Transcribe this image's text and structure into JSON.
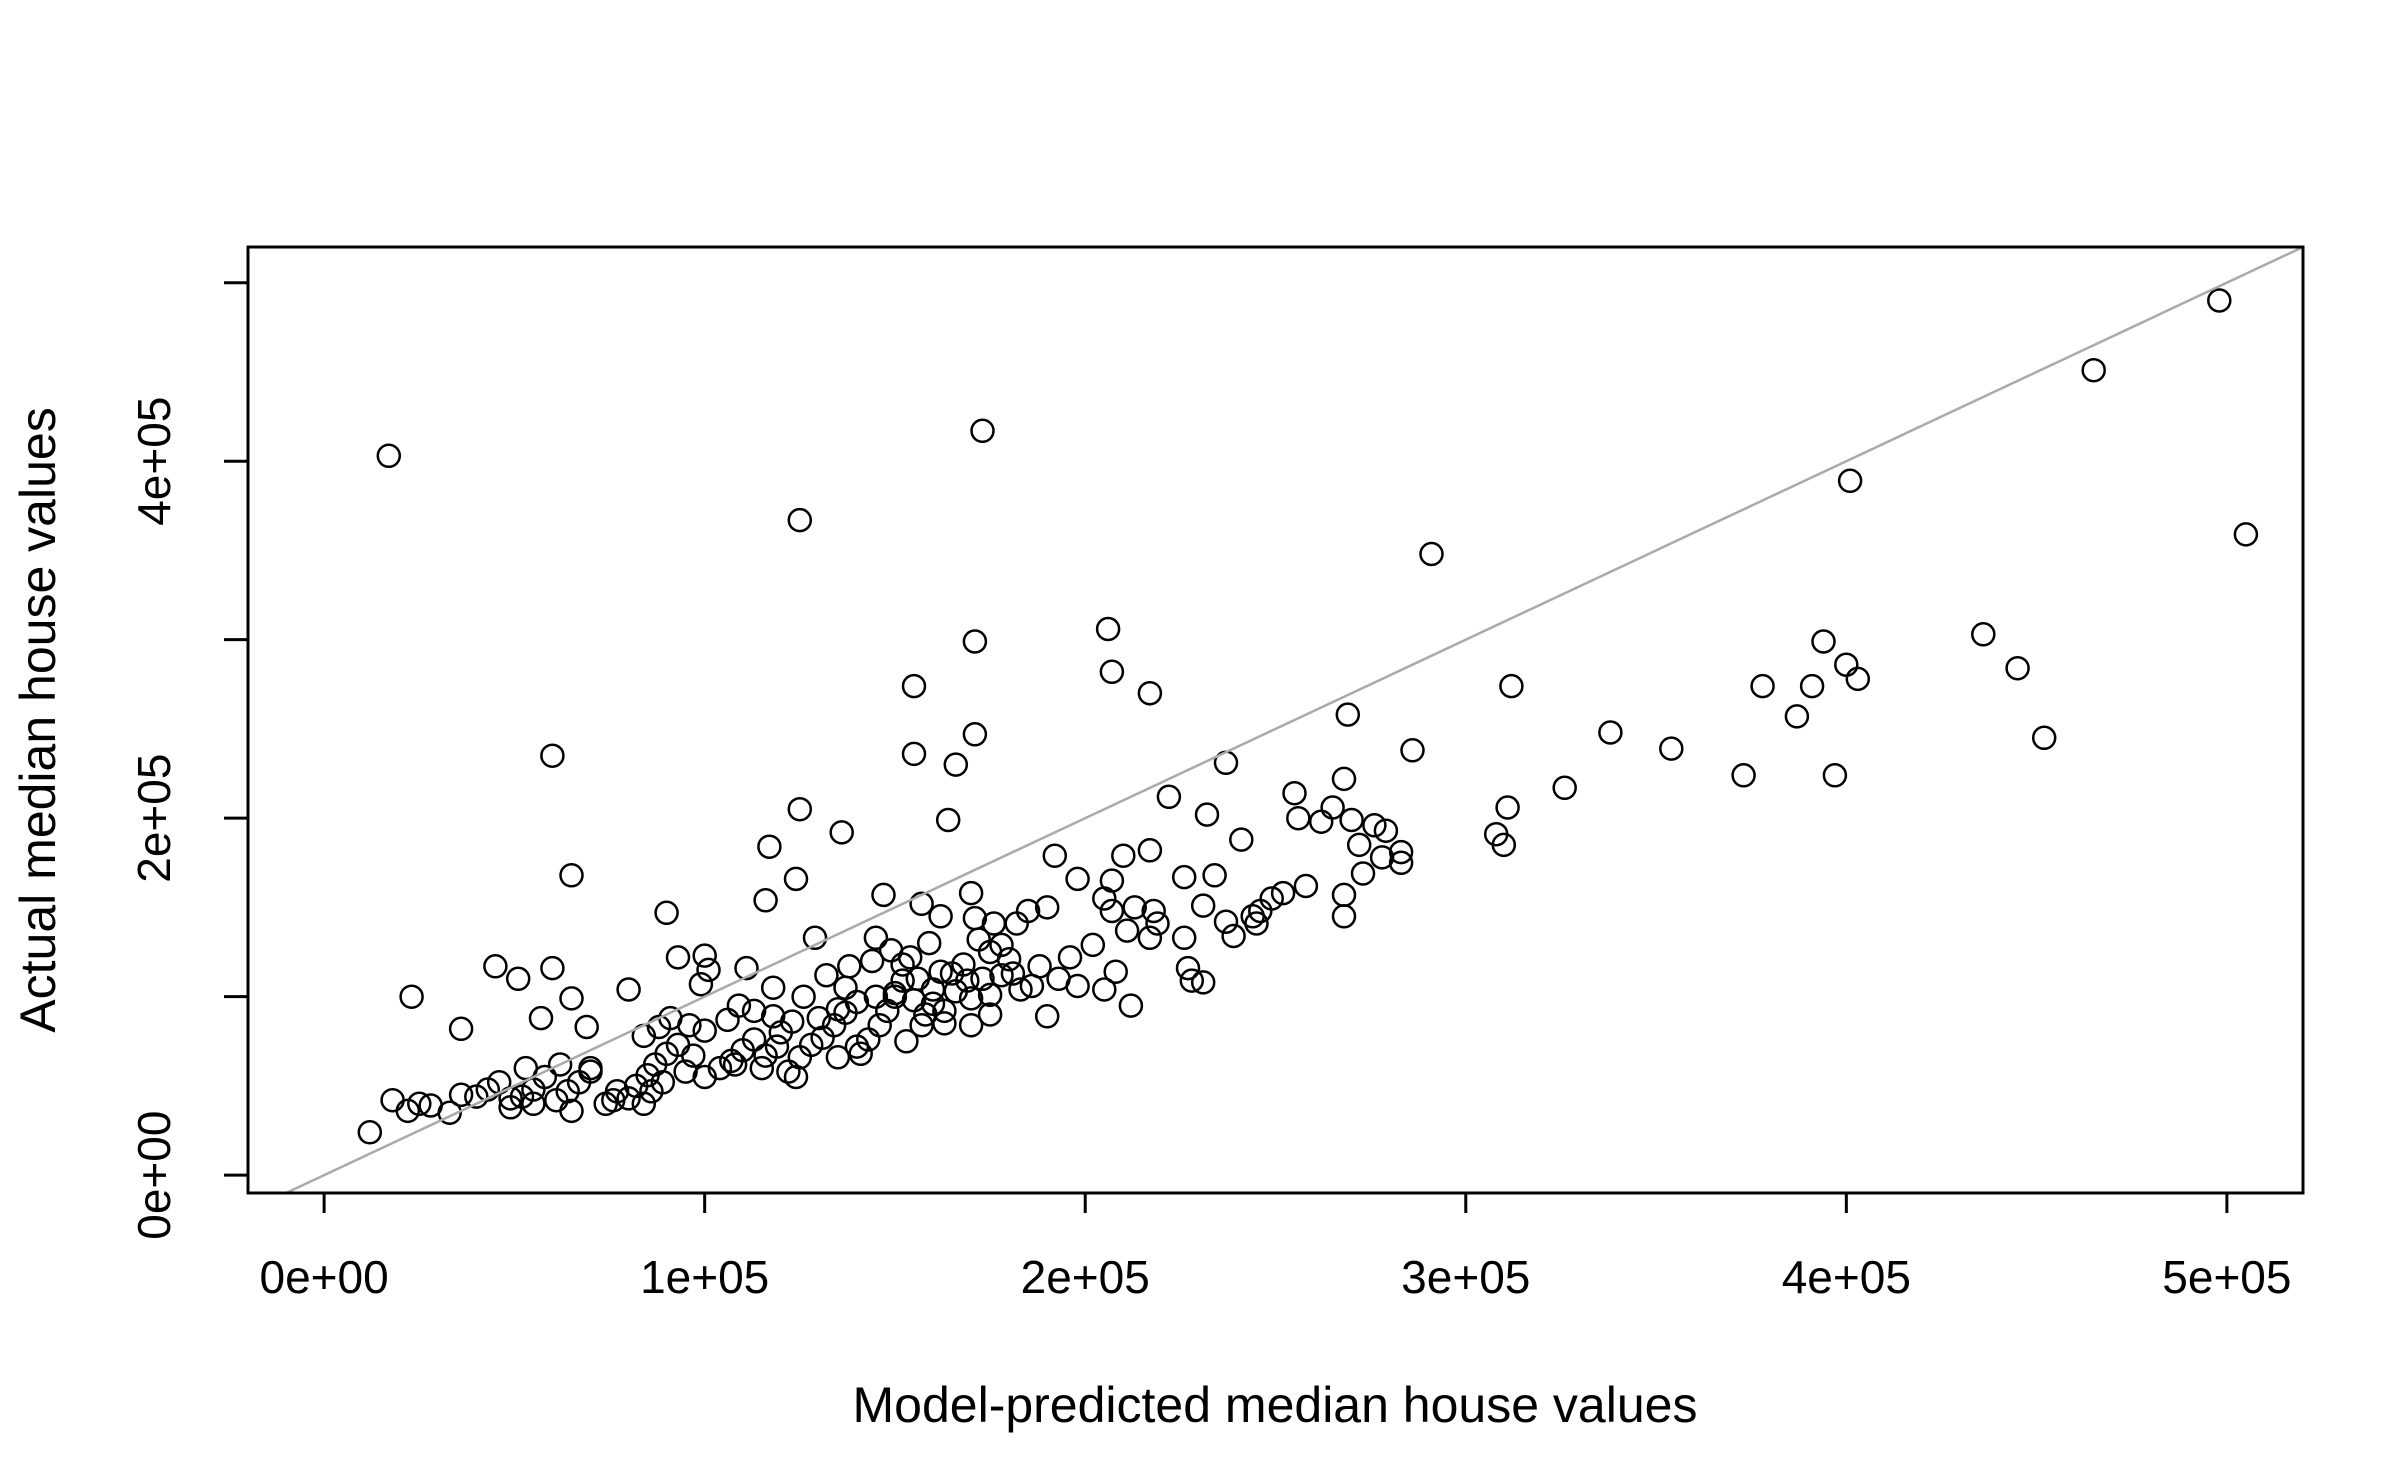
{
  "chart_data": {
    "type": "scatter",
    "title": "",
    "xlabel": "Model-predicted median house values",
    "ylabel": "Actual median house values",
    "xlim": [
      -20000,
      520000
    ],
    "ylim": [
      -10000,
      520000
    ],
    "x_ticks": [
      0,
      100000,
      200000,
      300000,
      400000,
      500000
    ],
    "x_tick_labels": [
      "0e+00",
      "1e+05",
      "2e+05",
      "3e+05",
      "4e+05",
      "5e+05"
    ],
    "y_ticks": [
      0,
      100000,
      200000,
      300000,
      400000,
      500000
    ],
    "y_tick_labels": [
      "0e+00",
      "",
      "2e+05",
      "",
      "4e+05",
      ""
    ],
    "grid": false,
    "legend": "none",
    "reference_line": {
      "slope": 1,
      "intercept": 0,
      "color": "#AAAAAA"
    },
    "marker_color": "#000000",
    "points": [
      [
        17000,
        403000
      ],
      [
        173000,
        417000
      ],
      [
        125000,
        367000
      ],
      [
        291000,
        348000
      ],
      [
        498000,
        490000
      ],
      [
        465000,
        451000
      ],
      [
        401000,
        389000
      ],
      [
        505000,
        359000
      ],
      [
        60000,
        235000
      ],
      [
        65000,
        168000
      ],
      [
        206000,
        306000
      ],
      [
        207000,
        282000
      ],
      [
        171000,
        299000
      ],
      [
        217000,
        270000
      ],
      [
        155000,
        274000
      ],
      [
        155000,
        236000
      ],
      [
        166000,
        230000
      ],
      [
        171000,
        247000
      ],
      [
        269000,
        258000
      ],
      [
        237000,
        231000
      ],
      [
        164000,
        199000
      ],
      [
        125000,
        205000
      ],
      [
        136000,
        192000
      ],
      [
        117000,
        184000
      ],
      [
        124000,
        166000
      ],
      [
        116000,
        154000
      ],
      [
        90000,
        147000
      ],
      [
        312000,
        274000
      ],
      [
        338000,
        248000
      ],
      [
        354000,
        239000
      ],
      [
        373000,
        224000
      ],
      [
        378000,
        274000
      ],
      [
        387000,
        257000
      ],
      [
        391000,
        274000
      ],
      [
        394000,
        299000
      ],
      [
        397000,
        224000
      ],
      [
        400000,
        286000
      ],
      [
        403000,
        278000
      ],
      [
        436000,
        303000
      ],
      [
        445000,
        284000
      ],
      [
        452000,
        245000
      ],
      [
        311000,
        206000
      ],
      [
        326000,
        217000
      ],
      [
        308000,
        191000
      ],
      [
        310000,
        185000
      ],
      [
        286000,
        238000
      ],
      [
        268000,
        222000
      ],
      [
        255000,
        214000
      ],
      [
        256000,
        200000
      ],
      [
        262000,
        198000
      ],
      [
        265000,
        206000
      ],
      [
        270000,
        199000
      ],
      [
        272000,
        185000
      ],
      [
        276000,
        196000
      ],
      [
        279000,
        193000
      ],
      [
        283000,
        181000
      ],
      [
        283000,
        175000
      ],
      [
        278000,
        178000
      ],
      [
        273000,
        169000
      ],
      [
        268000,
        157000
      ],
      [
        268000,
        145000
      ],
      [
        252000,
        158000
      ],
      [
        246000,
        148000
      ],
      [
        245000,
        141000
      ],
      [
        239000,
        134000
      ],
      [
        237000,
        142000
      ],
      [
        231000,
        151000
      ],
      [
        222000,
        212000
      ],
      [
        232000,
        202000
      ],
      [
        241000,
        188000
      ],
      [
        217000,
        182000
      ],
      [
        210000,
        179000
      ],
      [
        207000,
        165000
      ],
      [
        205000,
        155000
      ],
      [
        207000,
        148000
      ],
      [
        213000,
        150000
      ],
      [
        219000,
        141000
      ],
      [
        217000,
        133000
      ],
      [
        211000,
        137000
      ],
      [
        202000,
        129000
      ],
      [
        198000,
        166000
      ],
      [
        192000,
        179000
      ],
      [
        190000,
        150000
      ],
      [
        185000,
        148000
      ],
      [
        182000,
        141000
      ],
      [
        176000,
        141000
      ],
      [
        171000,
        144000
      ],
      [
        170000,
        158000
      ],
      [
        172000,
        132000
      ],
      [
        175000,
        125000
      ],
      [
        180000,
        121000
      ],
      [
        178000,
        112000
      ],
      [
        169000,
        109000
      ],
      [
        165000,
        113000
      ],
      [
        160000,
        104000
      ],
      [
        160000,
        96000
      ],
      [
        158000,
        90000
      ],
      [
        157000,
        84000
      ],
      [
        152000,
        109000
      ],
      [
        150000,
        100000
      ],
      [
        148000,
        92000
      ],
      [
        146000,
        84000
      ],
      [
        143000,
        76000
      ],
      [
        141000,
        68000
      ],
      [
        137000,
        91000
      ],
      [
        134000,
        84000
      ],
      [
        131000,
        77000
      ],
      [
        128000,
        73000
      ],
      [
        125000,
        66000
      ],
      [
        122000,
        58000
      ],
      [
        119000,
        72000
      ],
      [
        116000,
        67000
      ],
      [
        113000,
        76000
      ],
      [
        110000,
        70000
      ],
      [
        107000,
        64000
      ],
      [
        104000,
        60000
      ],
      [
        100000,
        55000
      ],
      [
        97000,
        67000
      ],
      [
        93000,
        73000
      ],
      [
        90000,
        68000
      ],
      [
        87000,
        62000
      ],
      [
        85000,
        56000
      ],
      [
        82000,
        50000
      ],
      [
        80000,
        43000
      ],
      [
        77000,
        47000
      ],
      [
        74000,
        40000
      ],
      [
        70000,
        58000
      ],
      [
        67000,
        52000
      ],
      [
        64000,
        47000
      ],
      [
        61000,
        42000
      ],
      [
        58000,
        55000
      ],
      [
        55000,
        48000
      ],
      [
        52000,
        44000
      ],
      [
        49000,
        38000
      ],
      [
        46000,
        52000
      ],
      [
        43000,
        48000
      ],
      [
        40000,
        44000
      ],
      [
        36000,
        45000
      ],
      [
        33000,
        35000
      ],
      [
        28000,
        39000
      ],
      [
        25000,
        40000
      ],
      [
        22000,
        36000
      ],
      [
        18000,
        42000
      ],
      [
        12000,
        24000
      ],
      [
        23000,
        100000
      ],
      [
        36000,
        82000
      ],
      [
        45000,
        117000
      ],
      [
        51000,
        110000
      ],
      [
        57000,
        88000
      ],
      [
        60000,
        116000
      ],
      [
        65000,
        99000
      ],
      [
        69000,
        83000
      ],
      [
        80000,
        104000
      ],
      [
        93000,
        122000
      ],
      [
        100000,
        123000
      ],
      [
        101000,
        115000
      ],
      [
        99000,
        107000
      ],
      [
        111000,
        116000
      ],
      [
        118000,
        105000
      ],
      [
        126000,
        100000
      ],
      [
        129000,
        133000
      ],
      [
        137000,
        105000
      ],
      [
        145000,
        133000
      ],
      [
        149000,
        126000
      ],
      [
        152000,
        118000
      ],
      [
        156000,
        110000
      ],
      [
        162000,
        114000
      ],
      [
        168000,
        118000
      ],
      [
        178000,
        129000
      ],
      [
        186000,
        106000
      ],
      [
        193000,
        110000
      ],
      [
        198000,
        106000
      ],
      [
        205000,
        104000
      ],
      [
        208000,
        114000
      ],
      [
        212000,
        95000
      ],
      [
        227000,
        116000
      ],
      [
        228000,
        109000
      ],
      [
        231000,
        108000
      ],
      [
        120000,
        80000
      ],
      [
        123000,
        86000
      ],
      [
        130000,
        88000
      ],
      [
        135000,
        93000
      ],
      [
        140000,
        97000
      ],
      [
        145000,
        100000
      ],
      [
        150000,
        102000
      ],
      [
        155000,
        98000
      ],
      [
        163000,
        92000
      ],
      [
        170000,
        99000
      ],
      [
        175000,
        101000
      ],
      [
        183000,
        104000
      ],
      [
        147000,
        157000
      ],
      [
        157000,
        152000
      ],
      [
        162000,
        145000
      ],
      [
        226000,
        133000
      ],
      [
        234000,
        168000
      ],
      [
        244000,
        145000
      ],
      [
        249000,
        155000
      ],
      [
        258000,
        162000
      ],
      [
        226000,
        167000
      ],
      [
        218000,
        148000
      ],
      [
        190000,
        89000
      ],
      [
        175000,
        90000
      ],
      [
        170000,
        84000
      ],
      [
        163000,
        85000
      ],
      [
        153000,
        75000
      ],
      [
        140000,
        72000
      ],
      [
        135000,
        66000
      ],
      [
        124000,
        55000
      ],
      [
        115000,
        60000
      ],
      [
        108000,
        62000
      ],
      [
        95000,
        58000
      ],
      [
        89000,
        52000
      ],
      [
        86000,
        47000
      ],
      [
        84000,
        40000
      ],
      [
        76000,
        42000
      ],
      [
        65000,
        36000
      ],
      [
        55000,
        40000
      ],
      [
        49000,
        43000
      ],
      [
        109000,
        95000
      ],
      [
        113000,
        92000
      ],
      [
        118000,
        89000
      ],
      [
        106000,
        87000
      ],
      [
        100000,
        81000
      ],
      [
        96000,
        84000
      ],
      [
        91000,
        88000
      ],
      [
        88000,
        83000
      ],
      [
        84000,
        78000
      ],
      [
        70000,
        60000
      ],
      [
        62000,
        62000
      ],
      [
        53000,
        60000
      ],
      [
        132000,
        112000
      ],
      [
        138000,
        117000
      ],
      [
        144000,
        120000
      ],
      [
        154000,
        122000
      ],
      [
        166000,
        103000
      ],
      [
        173000,
        110000
      ],
      [
        181000,
        113000
      ],
      [
        188000,
        117000
      ],
      [
        196000,
        122000
      ],
      [
        159000,
        130000
      ]
    ]
  }
}
